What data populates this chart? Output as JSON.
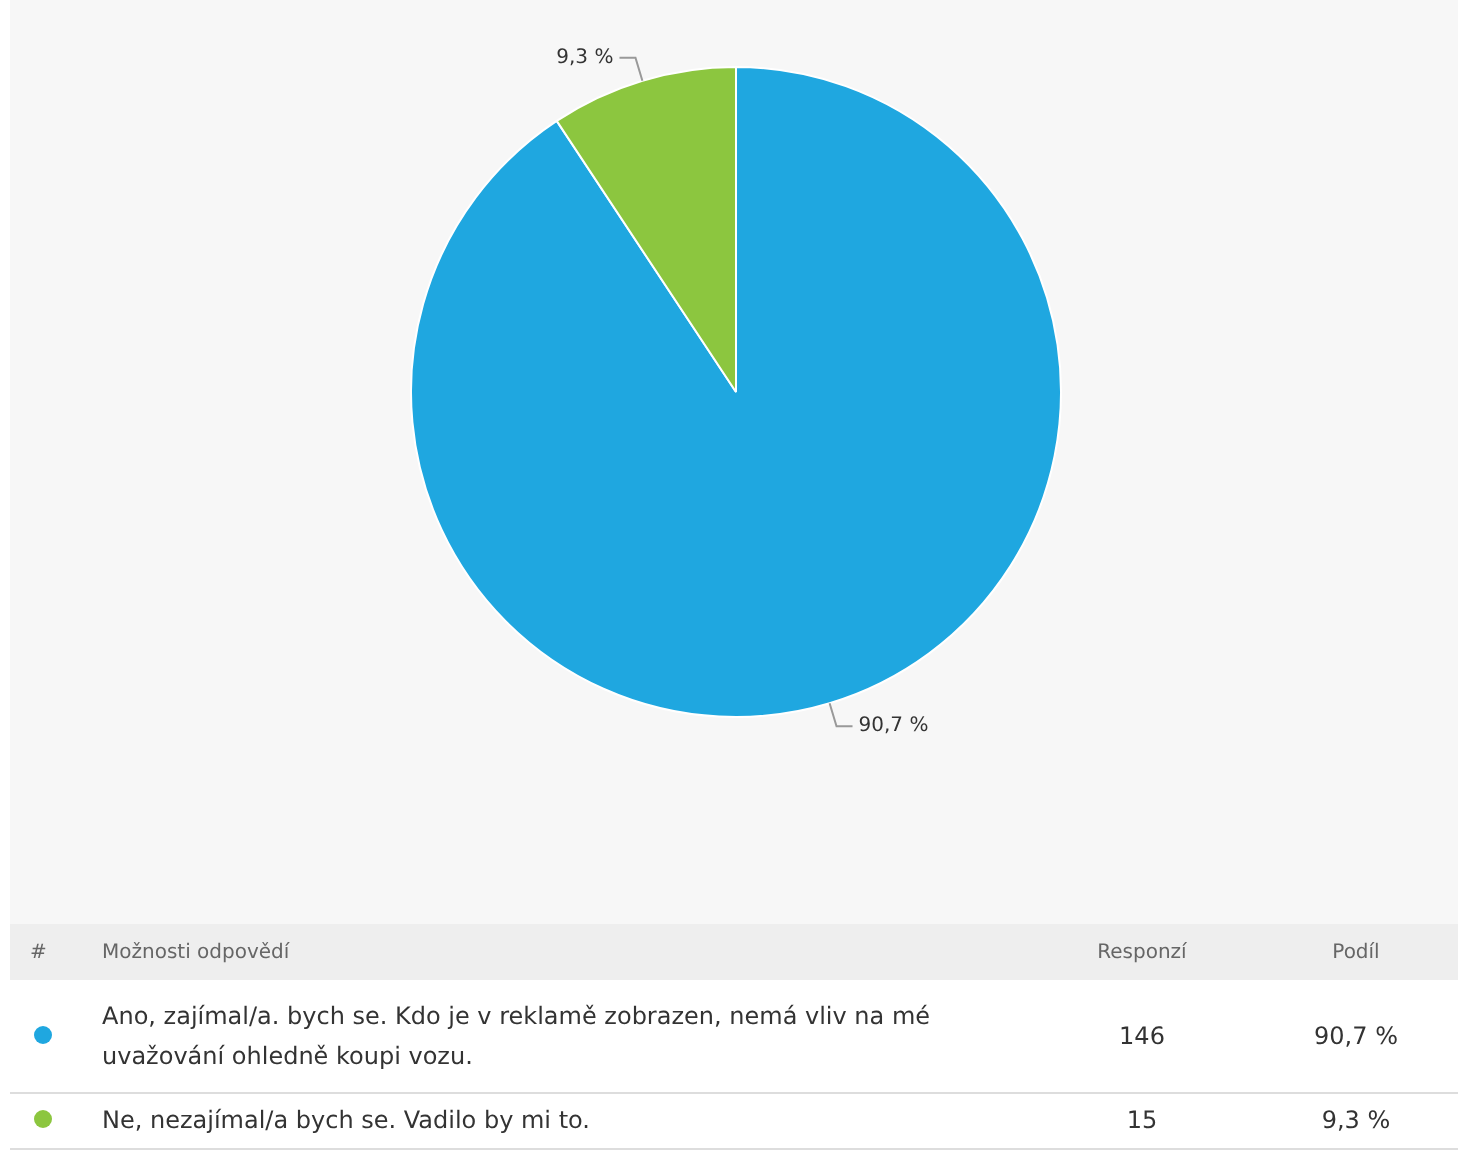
{
  "chart_data": {
    "type": "pie",
    "categories": [
      "Ano, zajímal/a. bych se. Kdo je v reklamě zobrazen, nemá vliv na mé uvažování ohledně koupi vozu.",
      "Ne, nezajímal/a bych se. Vadilo by mi to."
    ],
    "values": [
      90.7,
      9.3
    ],
    "value_labels": [
      "90,7 %",
      "9,3 %"
    ],
    "colors": [
      "#1fa7e0",
      "#8cc63f"
    ],
    "legend": "bottom",
    "annotations": [
      "#",
      "Možnosti odpovědí",
      "Responzí",
      "Podíl",
      "146",
      "15"
    ]
  }
}
